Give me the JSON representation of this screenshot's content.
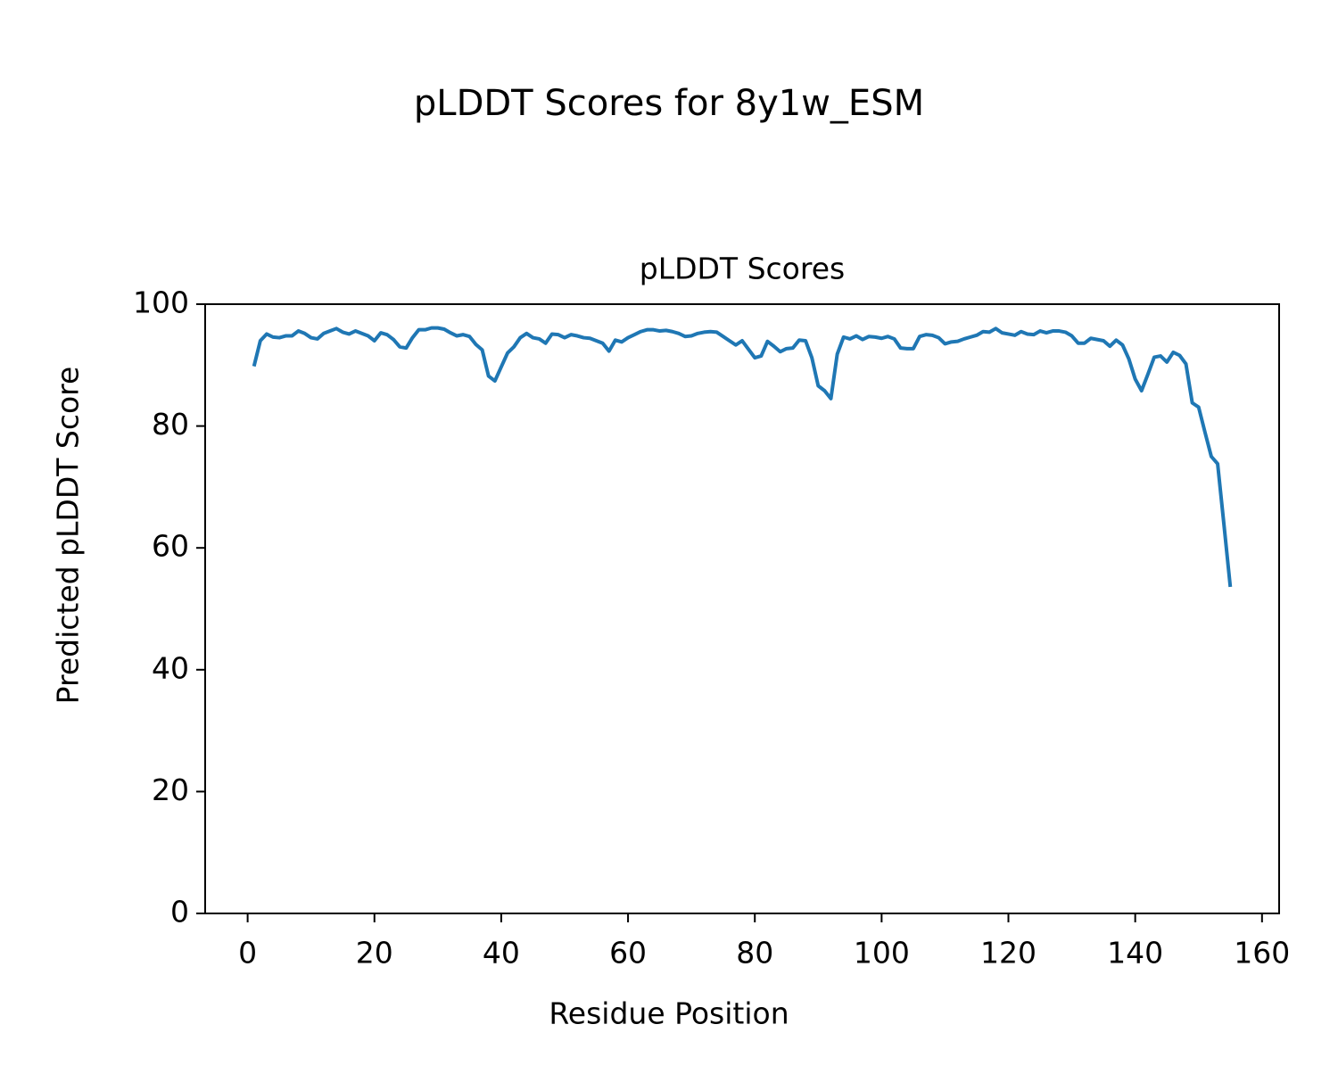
{
  "chart_data": {
    "type": "line",
    "suptitle": "pLDDT Scores for 8y1w_ESM",
    "title": "pLDDT Scores",
    "xlabel": "Residue Position",
    "ylabel": "Predicted pLDDT Score",
    "xlim": [
      -6.7,
      162.7
    ],
    "ylim": [
      0,
      100
    ],
    "xticks": [
      0,
      20,
      40,
      60,
      80,
      100,
      120,
      140,
      160
    ],
    "yticks": [
      0,
      20,
      40,
      60,
      80,
      100
    ],
    "x": [
      1,
      2,
      3,
      4,
      5,
      6,
      7,
      8,
      9,
      10,
      11,
      12,
      13,
      14,
      15,
      16,
      17,
      18,
      19,
      20,
      21,
      22,
      23,
      24,
      25,
      26,
      27,
      28,
      29,
      30,
      31,
      32,
      33,
      34,
      35,
      36,
      37,
      38,
      39,
      40,
      41,
      42,
      43,
      44,
      45,
      46,
      47,
      48,
      49,
      50,
      51,
      52,
      53,
      54,
      55,
      56,
      57,
      58,
      59,
      60,
      61,
      62,
      63,
      64,
      65,
      66,
      67,
      68,
      69,
      70,
      71,
      72,
      73,
      74,
      75,
      76,
      77,
      78,
      79,
      80,
      81,
      82,
      83,
      84,
      85,
      86,
      87,
      88,
      89,
      90,
      91,
      92,
      93,
      94,
      95,
      96,
      97,
      98,
      99,
      100,
      101,
      102,
      103,
      104,
      105,
      106,
      107,
      108,
      109,
      110,
      111,
      112,
      113,
      114,
      115,
      116,
      117,
      118,
      119,
      120,
      121,
      122,
      123,
      124,
      125,
      126,
      127,
      128,
      129,
      130,
      131,
      132,
      133,
      134,
      135,
      136,
      137,
      138,
      139,
      140,
      141,
      142,
      143,
      144,
      145,
      146,
      147,
      148,
      149,
      150,
      151,
      152,
      153,
      154,
      155
    ],
    "series": [
      {
        "color": "#1f77b4",
        "values": [
          89.8,
          94,
          95.1,
          94.6,
          94.5,
          94.8,
          94.8,
          95.6,
          95.2,
          94.5,
          94.3,
          95.2,
          95.6,
          96.0,
          95.4,
          95.1,
          95.6,
          95.2,
          94.8,
          94.0,
          95.3,
          95.0,
          94.2,
          93.0,
          92.8,
          94.5,
          95.8,
          95.8,
          96.1,
          96.1,
          95.9,
          95.3,
          94.8,
          95.0,
          94.7,
          93.4,
          92.5,
          88.2,
          87.4,
          89.7,
          92.0,
          93.0,
          94.5,
          95.2,
          94.5,
          94.3,
          93.6,
          95.1,
          95.0,
          94.5,
          95.0,
          94.8,
          94.5,
          94.4,
          94.0,
          93.6,
          92.3,
          94.1,
          93.8,
          94.5,
          95.0,
          95.5,
          95.8,
          95.8,
          95.6,
          95.7,
          95.5,
          95.2,
          94.7,
          94.8,
          95.2,
          95.4,
          95.5,
          95.4,
          94.7,
          94.0,
          93.3,
          94.0,
          92.6,
          91.2,
          91.5,
          93.9,
          93.1,
          92.2,
          92.7,
          92.8,
          94.1,
          94.0,
          91.2,
          86.6,
          85.8,
          84.5,
          91.8,
          94.6,
          94.3,
          94.8,
          94.2,
          94.7,
          94.6,
          94.4,
          94.7,
          94.3,
          92.8,
          92.7,
          92.7,
          94.7,
          95.0,
          94.9,
          94.5,
          93.5,
          93.8,
          93.9,
          94.3,
          94.6,
          94.9,
          95.5,
          95.4,
          96.0,
          95.3,
          95.1,
          94.9,
          95.5,
          95.1,
          95.0,
          95.6,
          95.3,
          95.6,
          95.6,
          95.4,
          94.8,
          93.6,
          93.6,
          94.4,
          94.2,
          94.0,
          93.1,
          94.1,
          93.3,
          91.0,
          87.7,
          85.8,
          88.5,
          91.3,
          91.5,
          90.5,
          92.1,
          91.6,
          90.2,
          83.8,
          83.1,
          79.0,
          75.0,
          73.8,
          63.8,
          53.6
        ]
      }
    ]
  }
}
